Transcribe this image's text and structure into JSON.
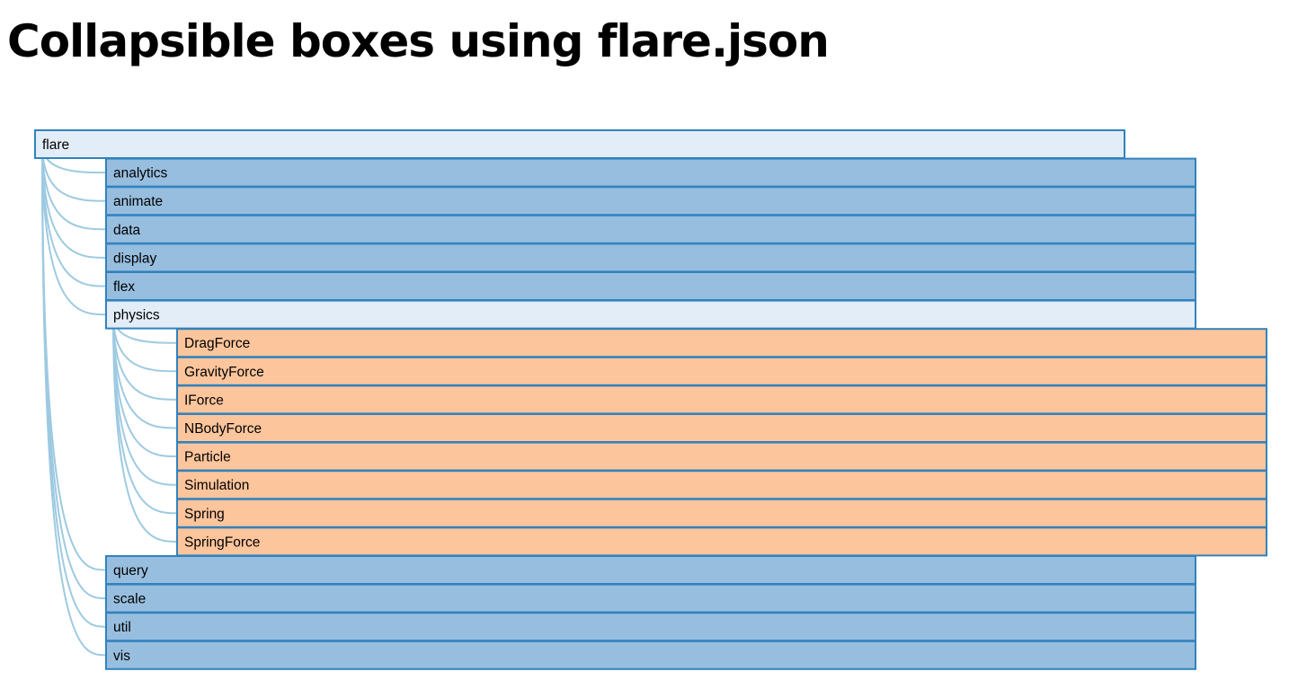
{
  "page": {
    "title": "Collapsible boxes using flare.json"
  },
  "colors": {
    "expanded_node": "#e3edf8",
    "collapsed_node": "#98bedf",
    "leaf_node": "#fdc59c",
    "node_border": "#3182bd",
    "link": "#9ecae1"
  },
  "tree": {
    "name": "flare",
    "state": "expanded",
    "children": [
      {
        "name": "analytics",
        "state": "collapsed"
      },
      {
        "name": "animate",
        "state": "collapsed"
      },
      {
        "name": "data",
        "state": "collapsed"
      },
      {
        "name": "display",
        "state": "collapsed"
      },
      {
        "name": "flex",
        "state": "collapsed"
      },
      {
        "name": "physics",
        "state": "expanded",
        "children": [
          {
            "name": "DragForce",
            "state": "leaf"
          },
          {
            "name": "GravityForce",
            "state": "leaf"
          },
          {
            "name": "IForce",
            "state": "leaf"
          },
          {
            "name": "NBodyForce",
            "state": "leaf"
          },
          {
            "name": "Particle",
            "state": "leaf"
          },
          {
            "name": "Simulation",
            "state": "leaf"
          },
          {
            "name": "Spring",
            "state": "leaf"
          },
          {
            "name": "SpringForce",
            "state": "leaf"
          }
        ]
      },
      {
        "name": "query",
        "state": "collapsed"
      },
      {
        "name": "scale",
        "state": "collapsed"
      },
      {
        "name": "util",
        "state": "collapsed"
      },
      {
        "name": "vis",
        "state": "collapsed"
      }
    ]
  }
}
